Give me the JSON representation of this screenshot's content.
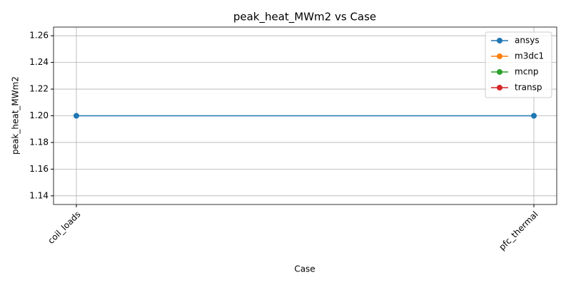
{
  "chart_data": {
    "type": "line",
    "title": "peak_heat_MWm2 vs Case",
    "xlabel": "Case",
    "ylabel": "peak_heat_MWm2",
    "categories": [
      "coil_loads",
      "pfc_thermal"
    ],
    "series": [
      {
        "name": "ansys",
        "color": "#1f77b4",
        "values": [
          1.2,
          1.2
        ]
      },
      {
        "name": "m3dc1",
        "color": "#ff7f0e",
        "values": [
          null,
          null
        ]
      },
      {
        "name": "mcnp",
        "color": "#2ca02c",
        "values": [
          null,
          null
        ]
      },
      {
        "name": "transp",
        "color": "#d62728",
        "values": [
          null,
          null
        ]
      }
    ],
    "ylim": [
      1.1335,
      1.2665
    ],
    "yticks": [
      1.14,
      1.16,
      1.18,
      {
        "value": 1.2,
        "label": "1.20"
      },
      1.22,
      1.24,
      1.26
    ],
    "grid": true,
    "legend": "upper right"
  }
}
